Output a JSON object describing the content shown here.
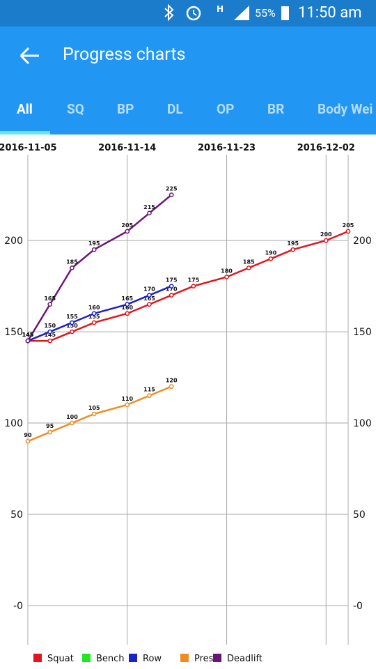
{
  "status_bar": {
    "battery": "55%",
    "time": "11:50 am"
  },
  "app_bar": {
    "title": "Progress charts"
  },
  "tabs": [
    "All",
    "SQ",
    "BP",
    "DL",
    "OP",
    "BR",
    "Body Wei"
  ],
  "chart_data": {
    "type": "line",
    "x": [
      "2016-11-05",
      "2016-11-07",
      "2016-11-09",
      "2016-11-11",
      "2016-11-14",
      "2016-11-16",
      "2016-11-18",
      "2016-11-20",
      "2016-11-23",
      "2016-11-25",
      "2016-11-27",
      "2016-11-29",
      "2016-12-02",
      "2016-12-04"
    ],
    "xlim": [
      "2016-11-05",
      "2016-12-04"
    ],
    "xticks": [
      "2016-11-05",
      "2016-11-14",
      "2016-11-23",
      "2016-12-02"
    ],
    "ylim": [
      -21.4,
      247
    ],
    "yticks": [
      {
        "value": 0,
        "label": "-0"
      },
      50,
      100,
      150,
      200
    ],
    "grid": true,
    "series": [
      {
        "name": "Squat",
        "color": "#e0151d",
        "values": [
          145,
          145,
          150,
          155,
          160,
          165,
          170,
          175,
          180,
          185,
          190,
          195,
          200,
          205
        ]
      },
      {
        "name": "Bench",
        "color": "#22e622",
        "values": [
          null,
          null,
          null,
          null,
          null,
          null,
          null,
          null,
          null,
          null,
          null,
          null,
          null,
          null
        ]
      },
      {
        "name": "Row",
        "color": "#1a22c8",
        "values": [
          145,
          150,
          155,
          160,
          165,
          170,
          175,
          null,
          null,
          null,
          null,
          null,
          null,
          null
        ]
      },
      {
        "name": "Press",
        "color": "#f08c1e",
        "values": [
          90,
          95,
          100,
          105,
          110,
          115,
          120,
          null,
          null,
          null,
          null,
          null,
          null,
          null
        ]
      },
      {
        "name": "Deadlift",
        "color": "#6b1579",
        "values": [
          145,
          165,
          185,
          195,
          205,
          215,
          225,
          null,
          null,
          null,
          null,
          null,
          null,
          null
        ]
      }
    ]
  }
}
